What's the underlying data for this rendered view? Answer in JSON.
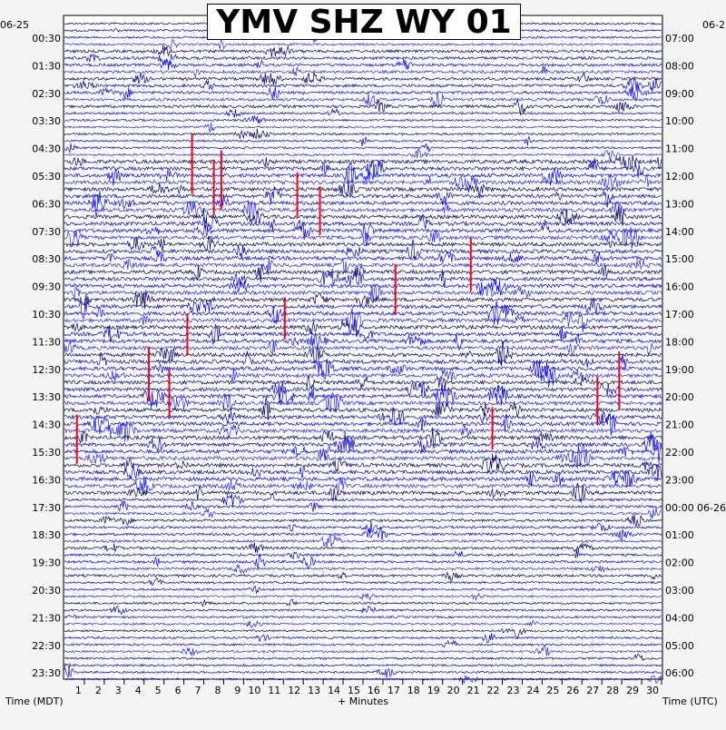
{
  "chart_data": {
    "type": "line",
    "title": "YMV SHZ WY 01",
    "left_axis_label": "Time (MDT)",
    "right_axis_label": "Time (UTC)",
    "xlabel": "+ Minutes",
    "x_ticks": [
      1,
      2,
      3,
      4,
      5,
      6,
      7,
      8,
      9,
      10,
      11,
      12,
      13,
      14,
      15,
      16,
      17,
      18,
      19,
      20,
      21,
      22,
      23,
      24,
      25,
      26,
      27,
      28,
      29,
      30
    ],
    "xlim": [
      0,
      30
    ],
    "row_minutes": 15,
    "num_rows": 96,
    "left_date": "06-25",
    "right_date_top": "06-2",
    "right_date_next": "06-26",
    "left_hour_labels": [
      "00:30",
      "01:30",
      "02:30",
      "03:30",
      "04:30",
      "05:30",
      "06:30",
      "07:30",
      "08:30",
      "09:30",
      "10:30",
      "11:30",
      "12:30",
      "13:30",
      "14:30",
      "15:30",
      "16:30",
      "17:30",
      "18:30",
      "19:30",
      "20:30",
      "21:30",
      "22:30",
      "23:30"
    ],
    "right_hour_labels": [
      "07:00",
      "08:00",
      "09:00",
      "10:00",
      "11:00",
      "12:00",
      "13:00",
      "14:00",
      "15:00",
      "16:00",
      "17:00",
      "18:00",
      "19:00",
      "20:00",
      "21:00",
      "22:00",
      "23:00",
      "00:00",
      "01:00",
      "02:00",
      "03:00",
      "04:00",
      "05:00",
      "06:00"
    ],
    "trace_colors": [
      "#000066",
      "#0000cc",
      "#0000ff",
      "#2222ff"
    ],
    "clip_color": "#ff0000",
    "grid": true
  }
}
